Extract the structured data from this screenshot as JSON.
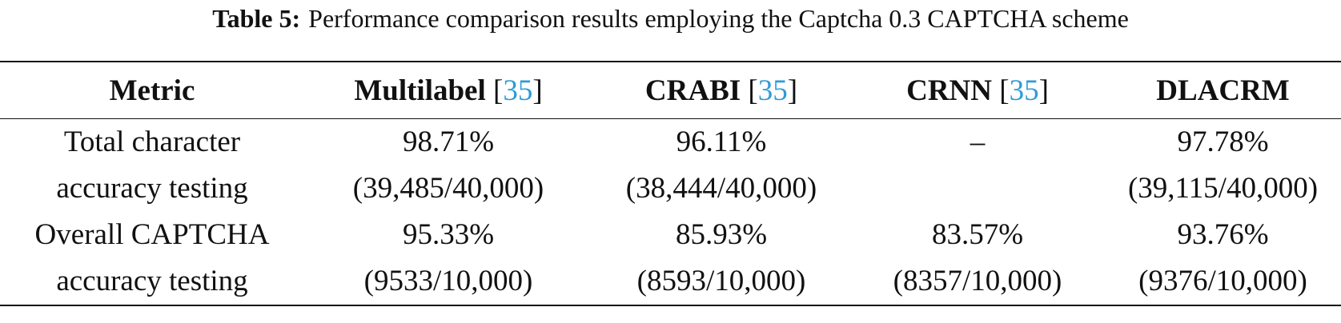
{
  "caption": {
    "label": "Table 5:",
    "text": "Performance comparison results employing the Captcha 0.3 CAPTCHA scheme"
  },
  "table": {
    "header": [
      {
        "name": "Metric"
      },
      {
        "name": "Multilabel",
        "ref": [
          "[",
          "35",
          "]"
        ]
      },
      {
        "name": "CRABI",
        "ref": [
          "[",
          "35",
          "]"
        ]
      },
      {
        "name": "CRNN",
        "ref": [
          "[",
          "35",
          "]"
        ]
      },
      {
        "name": "DLACRM"
      }
    ],
    "rows": [
      [
        [
          "Total character",
          "accuracy testing"
        ],
        [
          "98.71%",
          "(39,485/40,000)"
        ],
        [
          "96.11%",
          "(38,444/40,000)"
        ],
        [
          "–"
        ],
        [
          "97.78%",
          "(39,115/40,000)"
        ]
      ],
      [
        [
          "Overall CAPTCHA",
          "accuracy testing"
        ],
        [
          "95.33%",
          "(9533/10,000)"
        ],
        [
          "85.93%",
          "(8593/10,000)"
        ],
        [
          "83.57%",
          "(8357/10,000)"
        ],
        [
          "93.76%",
          "(9376/10,000)"
        ]
      ]
    ]
  }
}
